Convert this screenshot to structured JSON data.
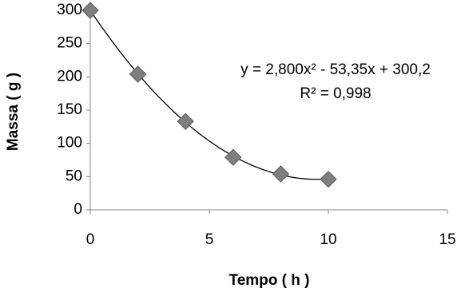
{
  "chart_data": {
    "type": "scatter",
    "x_label": "Tempo ( h )",
    "y_label": "Massa ( g )",
    "series": [
      {
        "name": "Massa",
        "color": "#7f7f7f",
        "x": [
          0,
          2,
          4,
          6,
          8,
          10
        ],
        "values": [
          300,
          204,
          133,
          79,
          54,
          46
        ]
      }
    ],
    "trendline": {
      "type": "polynomial",
      "equation": "y = 2,800x² - 53,35x + 300,2",
      "r_squared": "R² = 0,998"
    },
    "xlim": [
      0,
      15
    ],
    "xticks": [
      0,
      5,
      10,
      15
    ],
    "ylim": [
      0,
      300
    ],
    "yticks": [
      0,
      50,
      100,
      150,
      200,
      250,
      300
    ],
    "grid": false,
    "legend": false
  }
}
